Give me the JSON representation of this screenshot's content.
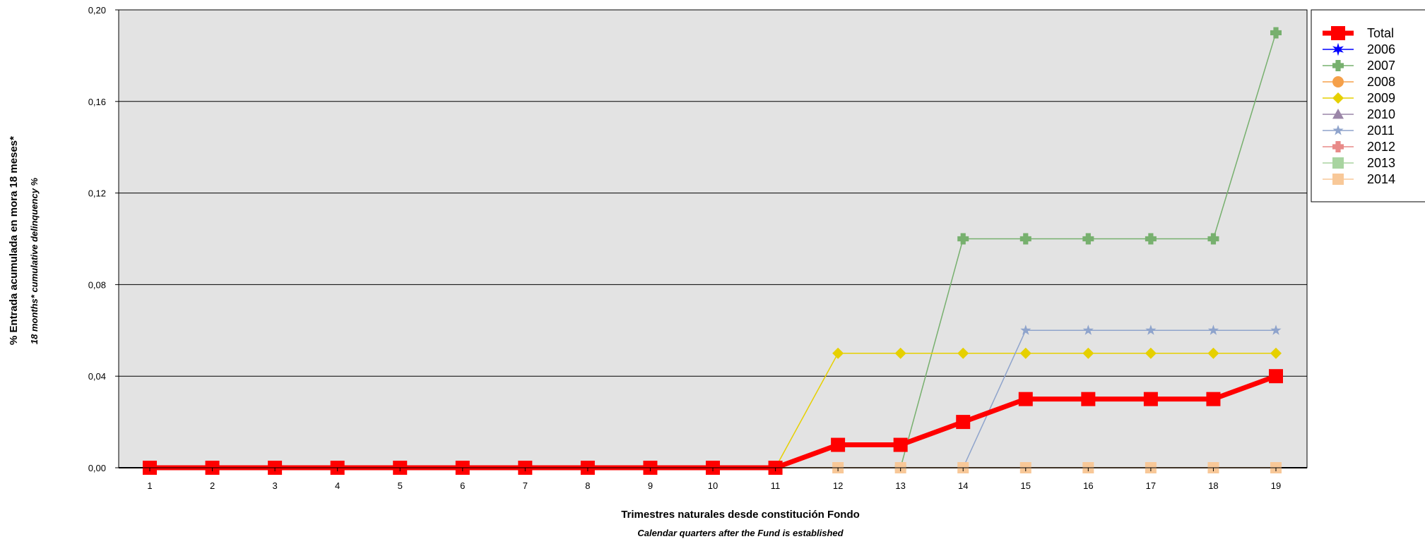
{
  "chart_data": {
    "type": "line",
    "xlabel": "Trimestres naturales desde constitución Fondo",
    "xlabel_sub": "Calendar quarters after the Fund is established",
    "ylabel": "% Entrada acumulada en mora 18 meses*",
    "ylabel_sub": "18 months* cumulative delinquency %",
    "x": [
      1,
      2,
      3,
      4,
      5,
      6,
      7,
      8,
      9,
      10,
      11,
      12,
      13,
      14,
      15,
      16,
      17,
      18,
      19
    ],
    "ylim": [
      0,
      0.2
    ],
    "yticks": [
      0,
      0.04,
      0.08,
      0.12,
      0.16,
      0.2
    ],
    "ytick_labels": [
      "0,00",
      "0,04",
      "0,08",
      "0,12",
      "0,16",
      "0,20"
    ],
    "grid": true,
    "legend_position": "right",
    "series": [
      {
        "name": "Total",
        "color": "#ff0000",
        "marker": "square",
        "width": "thick",
        "values": [
          0,
          0,
          0,
          0,
          0,
          0,
          0,
          0,
          0,
          0,
          0,
          0.01,
          0.01,
          0.02,
          0.03,
          0.03,
          0.03,
          0.03,
          0.04
        ]
      },
      {
        "name": "2006",
        "color": "#0000ff",
        "marker": "star6",
        "values": [
          null,
          null,
          null,
          null,
          null,
          null,
          null,
          null,
          null,
          null,
          null,
          null,
          null,
          null,
          null,
          null,
          null,
          null,
          null
        ]
      },
      {
        "name": "2007",
        "color": "#77b06e",
        "marker": "plus",
        "values": [
          null,
          null,
          null,
          null,
          null,
          null,
          null,
          null,
          null,
          null,
          null,
          null,
          0,
          0.1,
          0.1,
          0.1,
          0.1,
          0.1,
          0.19
        ]
      },
      {
        "name": "2008",
        "color": "#f5a04a",
        "marker": "circle",
        "values": [
          null,
          null,
          null,
          null,
          null,
          null,
          null,
          null,
          null,
          null,
          null,
          null,
          null,
          null,
          null,
          null,
          null,
          null,
          null
        ]
      },
      {
        "name": "2009",
        "color": "#e6d000",
        "marker": "diamond",
        "values": [
          0,
          0,
          0,
          0,
          0,
          0,
          0,
          0,
          0,
          0,
          0,
          0.05,
          0.05,
          0.05,
          0.05,
          0.05,
          0.05,
          0.05,
          0.05
        ]
      },
      {
        "name": "2010",
        "color": "#9b86a8",
        "marker": "triangle",
        "values": [
          null,
          null,
          null,
          null,
          null,
          null,
          null,
          null,
          null,
          null,
          null,
          null,
          null,
          null,
          null,
          null,
          null,
          null,
          null
        ]
      },
      {
        "name": "2011",
        "color": "#8fa4cc",
        "marker": "star5",
        "values": [
          null,
          null,
          null,
          null,
          null,
          null,
          null,
          null,
          null,
          null,
          null,
          null,
          null,
          0,
          0.06,
          0.06,
          0.06,
          0.06,
          0.06
        ]
      },
      {
        "name": "2012",
        "color": "#e88a88",
        "marker": "plus",
        "values": [
          null,
          null,
          null,
          null,
          null,
          null,
          null,
          null,
          null,
          null,
          null,
          null,
          null,
          null,
          null,
          null,
          null,
          null,
          null
        ]
      },
      {
        "name": "2013",
        "color": "#a8d4a0",
        "marker": "square",
        "values": [
          null,
          null,
          null,
          null,
          null,
          null,
          null,
          null,
          null,
          null,
          null,
          null,
          null,
          null,
          null,
          null,
          null,
          null,
          null
        ]
      },
      {
        "name": "2014",
        "color": "#f8c898",
        "marker": "square",
        "values": [
          0,
          0,
          0,
          0,
          0,
          0,
          0,
          0,
          0,
          0,
          0,
          0,
          0,
          0,
          0,
          0,
          0,
          0,
          0
        ]
      }
    ]
  }
}
